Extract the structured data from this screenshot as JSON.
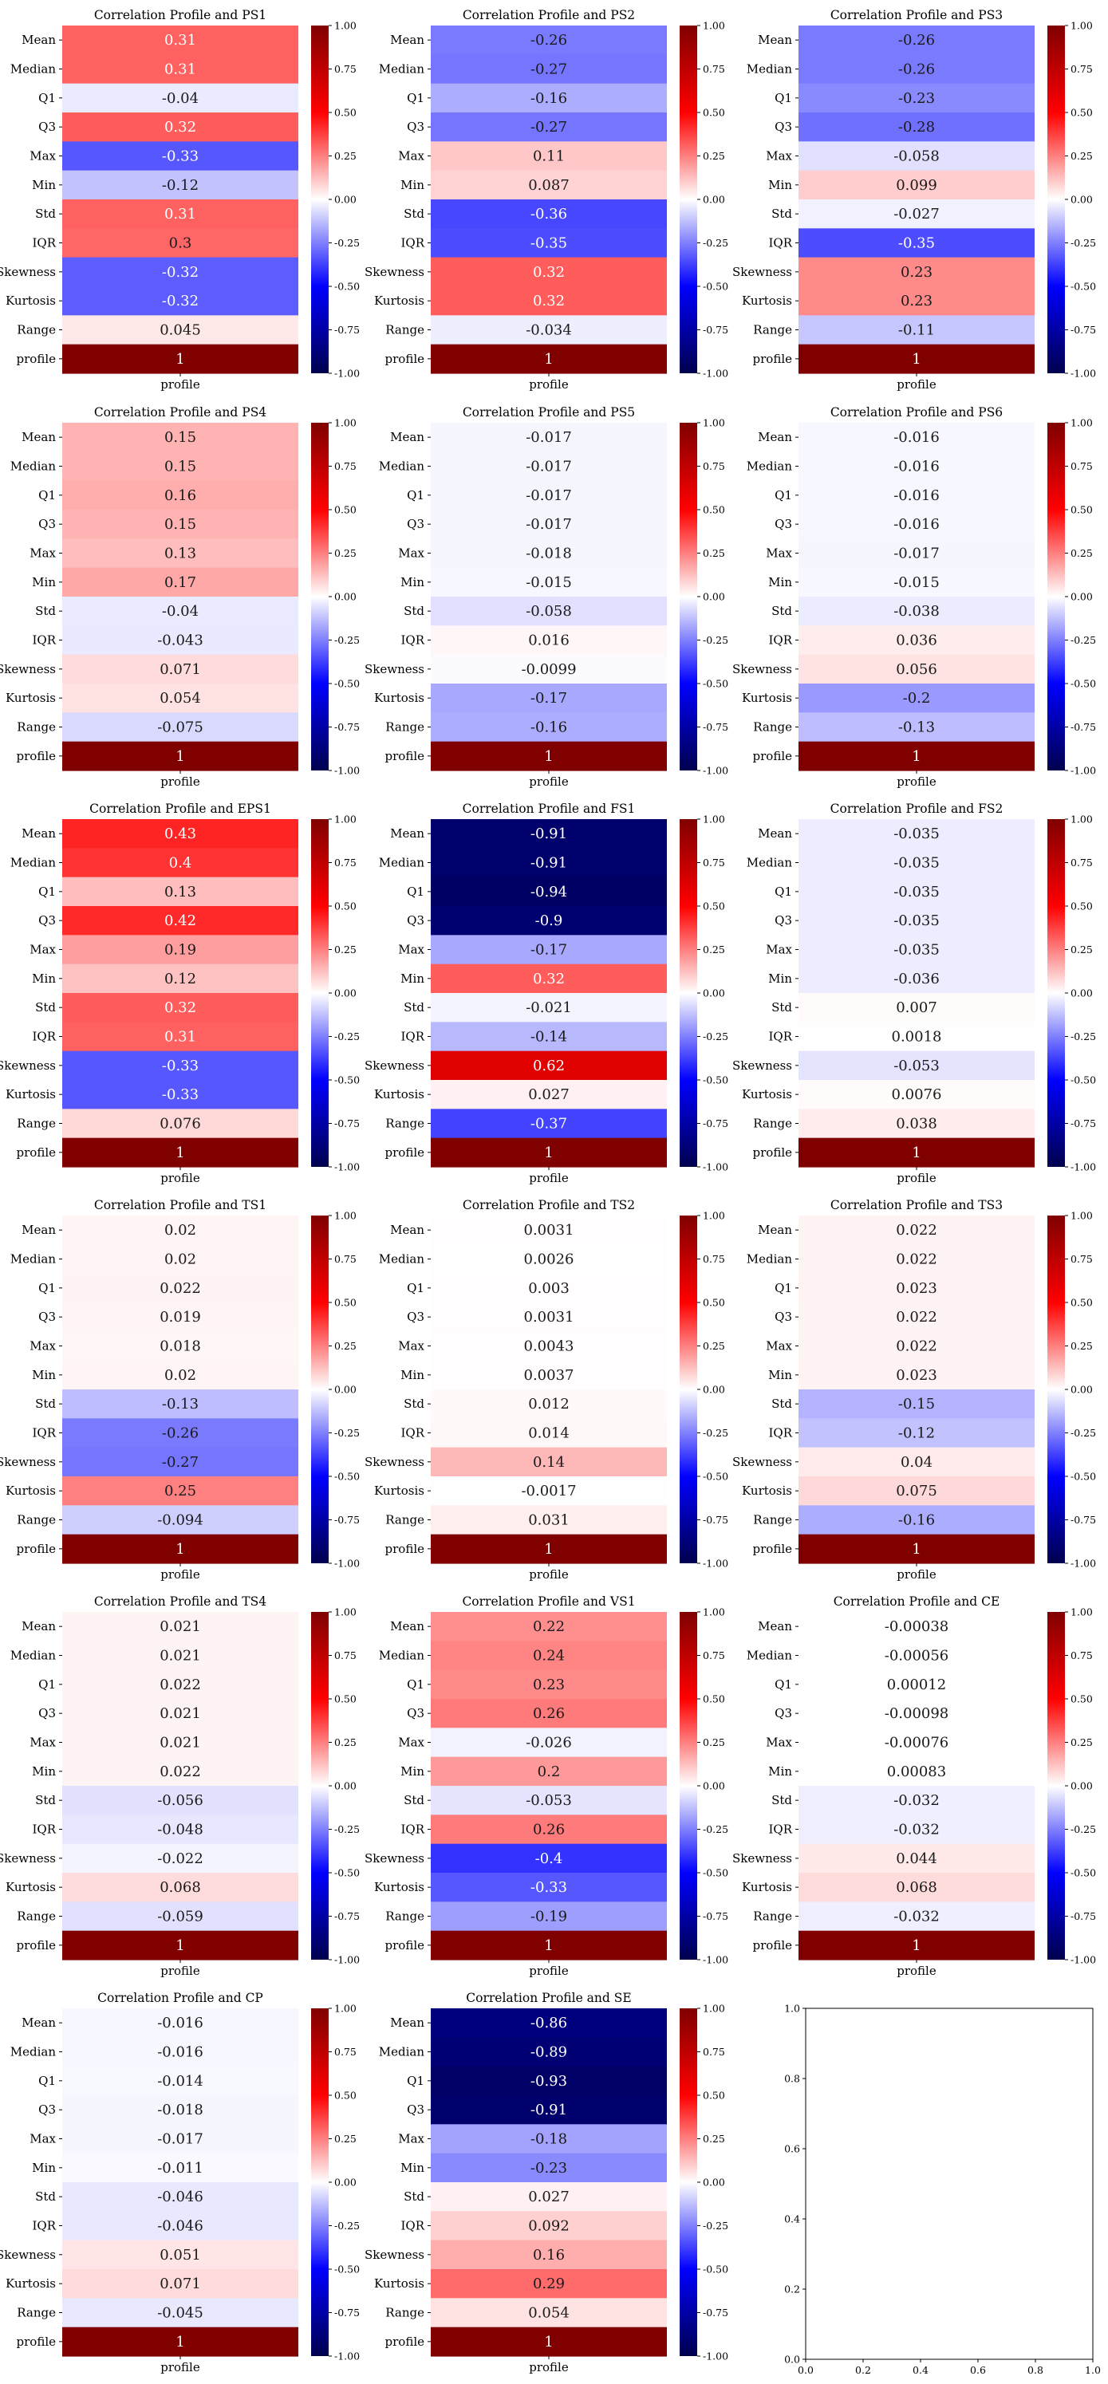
{
  "chart_data": [
    {
      "type": "heatmap",
      "title": "Correlation Profile and PS1",
      "xlabel": "profile",
      "rows": [
        "Mean",
        "Median",
        "Q1",
        "Q3",
        "Max",
        "Min",
        "Std",
        "IQR",
        "Skewness",
        "Kurtosis",
        "Range",
        "profile"
      ],
      "values": [
        "0.31",
        "0.31",
        "-0.04",
        "0.32",
        "-0.33",
        "-0.12",
        "0.31",
        "0.3",
        "-0.32",
        "-0.32",
        "0.045",
        "1"
      ],
      "colorbar": {
        "min": -1.0,
        "max": 1.0,
        "ticks": [
          "1.00",
          "0.75",
          "0.50",
          "0.25",
          "0.00",
          "-0.25",
          "-0.50",
          "-0.75",
          "-1.00"
        ]
      }
    },
    {
      "type": "heatmap",
      "title": "Correlation Profile and PS2",
      "xlabel": "profile",
      "rows": [
        "Mean",
        "Median",
        "Q1",
        "Q3",
        "Max",
        "Min",
        "Std",
        "IQR",
        "Skewness",
        "Kurtosis",
        "Range",
        "profile"
      ],
      "values": [
        "-0.26",
        "-0.27",
        "-0.16",
        "-0.27",
        "0.11",
        "0.087",
        "-0.36",
        "-0.35",
        "0.32",
        "0.32",
        "-0.034",
        "1"
      ],
      "colorbar": {
        "min": -1.0,
        "max": 1.0,
        "ticks": [
          "1.00",
          "0.75",
          "0.50",
          "0.25",
          "0.00",
          "-0.25",
          "-0.50",
          "-0.75",
          "-1.00"
        ]
      }
    },
    {
      "type": "heatmap",
      "title": "Correlation Profile and PS3",
      "xlabel": "profile",
      "rows": [
        "Mean",
        "Median",
        "Q1",
        "Q3",
        "Max",
        "Min",
        "Std",
        "IQR",
        "Skewness",
        "Kurtosis",
        "Range",
        "profile"
      ],
      "values": [
        "-0.26",
        "-0.26",
        "-0.23",
        "-0.28",
        "-0.058",
        "0.099",
        "-0.027",
        "-0.35",
        "0.23",
        "0.23",
        "-0.11",
        "1"
      ],
      "colorbar": {
        "min": -1.0,
        "max": 1.0,
        "ticks": [
          "1.00",
          "0.75",
          "0.50",
          "0.25",
          "0.00",
          "-0.25",
          "-0.50",
          "-0.75",
          "-1.00"
        ]
      }
    },
    {
      "type": "heatmap",
      "title": "Correlation Profile and PS4",
      "xlabel": "profile",
      "rows": [
        "Mean",
        "Median",
        "Q1",
        "Q3",
        "Max",
        "Min",
        "Std",
        "IQR",
        "Skewness",
        "Kurtosis",
        "Range",
        "profile"
      ],
      "values": [
        "0.15",
        "0.15",
        "0.16",
        "0.15",
        "0.13",
        "0.17",
        "-0.04",
        "-0.043",
        "0.071",
        "0.054",
        "-0.075",
        "1"
      ],
      "colorbar": {
        "min": -1.0,
        "max": 1.0,
        "ticks": [
          "1.00",
          "0.75",
          "0.50",
          "0.25",
          "0.00",
          "-0.25",
          "-0.50",
          "-0.75",
          "-1.00"
        ]
      }
    },
    {
      "type": "heatmap",
      "title": "Correlation Profile and PS5",
      "xlabel": "profile",
      "rows": [
        "Mean",
        "Median",
        "Q1",
        "Q3",
        "Max",
        "Min",
        "Std",
        "IQR",
        "Skewness",
        "Kurtosis",
        "Range",
        "profile"
      ],
      "values": [
        "-0.017",
        "-0.017",
        "-0.017",
        "-0.017",
        "-0.018",
        "-0.015",
        "-0.058",
        "0.016",
        "-0.0099",
        "-0.17",
        "-0.16",
        "1"
      ],
      "colorbar": {
        "min": -1.0,
        "max": 1.0,
        "ticks": [
          "1.00",
          "0.75",
          "0.50",
          "0.25",
          "0.00",
          "-0.25",
          "-0.50",
          "-0.75",
          "-1.00"
        ]
      }
    },
    {
      "type": "heatmap",
      "title": "Correlation Profile and PS6",
      "xlabel": "profile",
      "rows": [
        "Mean",
        "Median",
        "Q1",
        "Q3",
        "Max",
        "Min",
        "Std",
        "IQR",
        "Skewness",
        "Kurtosis",
        "Range",
        "profile"
      ],
      "values": [
        "-0.016",
        "-0.016",
        "-0.016",
        "-0.016",
        "-0.017",
        "-0.015",
        "-0.038",
        "0.036",
        "0.056",
        "-0.2",
        "-0.13",
        "1"
      ],
      "colorbar": {
        "min": -1.0,
        "max": 1.0,
        "ticks": [
          "1.00",
          "0.75",
          "0.50",
          "0.25",
          "0.00",
          "-0.25",
          "-0.50",
          "-0.75",
          "-1.00"
        ]
      }
    },
    {
      "type": "heatmap",
      "title": "Correlation Profile and EPS1",
      "xlabel": "profile",
      "rows": [
        "Mean",
        "Median",
        "Q1",
        "Q3",
        "Max",
        "Min",
        "Std",
        "IQR",
        "Skewness",
        "Kurtosis",
        "Range",
        "profile"
      ],
      "values": [
        "0.43",
        "0.4",
        "0.13",
        "0.42",
        "0.19",
        "0.12",
        "0.32",
        "0.31",
        "-0.33",
        "-0.33",
        "0.076",
        "1"
      ],
      "colorbar": {
        "min": -1.0,
        "max": 1.0,
        "ticks": [
          "1.00",
          "0.75",
          "0.50",
          "0.25",
          "0.00",
          "-0.25",
          "-0.50",
          "-0.75",
          "-1.00"
        ]
      }
    },
    {
      "type": "heatmap",
      "title": "Correlation Profile and FS1",
      "xlabel": "profile",
      "rows": [
        "Mean",
        "Median",
        "Q1",
        "Q3",
        "Max",
        "Min",
        "Std",
        "IQR",
        "Skewness",
        "Kurtosis",
        "Range",
        "profile"
      ],
      "values": [
        "-0.91",
        "-0.91",
        "-0.94",
        "-0.9",
        "-0.17",
        "0.32",
        "-0.021",
        "-0.14",
        "0.62",
        "0.027",
        "-0.37",
        "1"
      ],
      "colorbar": {
        "min": -1.0,
        "max": 1.0,
        "ticks": [
          "1.00",
          "0.75",
          "0.50",
          "0.25",
          "0.00",
          "-0.25",
          "-0.50",
          "-0.75",
          "-1.00"
        ]
      }
    },
    {
      "type": "heatmap",
      "title": "Correlation Profile and FS2",
      "xlabel": "profile",
      "rows": [
        "Mean",
        "Median",
        "Q1",
        "Q3",
        "Max",
        "Min",
        "Std",
        "IQR",
        "Skewness",
        "Kurtosis",
        "Range",
        "profile"
      ],
      "values": [
        "-0.035",
        "-0.035",
        "-0.035",
        "-0.035",
        "-0.035",
        "-0.036",
        "0.007",
        "0.0018",
        "-0.053",
        "0.0076",
        "0.038",
        "1"
      ],
      "colorbar": {
        "min": -1.0,
        "max": 1.0,
        "ticks": [
          "1.00",
          "0.75",
          "0.50",
          "0.25",
          "0.00",
          "-0.25",
          "-0.50",
          "-0.75",
          "-1.00"
        ]
      }
    },
    {
      "type": "heatmap",
      "title": "Correlation Profile and TS1",
      "xlabel": "profile",
      "rows": [
        "Mean",
        "Median",
        "Q1",
        "Q3",
        "Max",
        "Min",
        "Std",
        "IQR",
        "Skewness",
        "Kurtosis",
        "Range",
        "profile"
      ],
      "values": [
        "0.02",
        "0.02",
        "0.022",
        "0.019",
        "0.018",
        "0.02",
        "-0.13",
        "-0.26",
        "-0.27",
        "0.25",
        "-0.094",
        "1"
      ],
      "colorbar": {
        "min": -1.0,
        "max": 1.0,
        "ticks": [
          "1.00",
          "0.75",
          "0.50",
          "0.25",
          "0.00",
          "-0.25",
          "-0.50",
          "-0.75",
          "-1.00"
        ]
      }
    },
    {
      "type": "heatmap",
      "title": "Correlation Profile and TS2",
      "xlabel": "profile",
      "rows": [
        "Mean",
        "Median",
        "Q1",
        "Q3",
        "Max",
        "Min",
        "Std",
        "IQR",
        "Skewness",
        "Kurtosis",
        "Range",
        "profile"
      ],
      "values": [
        "0.0031",
        "0.0026",
        "0.003",
        "0.0031",
        "0.0043",
        "0.0037",
        "0.012",
        "0.014",
        "0.14",
        "-0.0017",
        "0.031",
        "1"
      ],
      "colorbar": {
        "min": -1.0,
        "max": 1.0,
        "ticks": [
          "1.00",
          "0.75",
          "0.50",
          "0.25",
          "0.00",
          "-0.25",
          "-0.50",
          "-0.75",
          "-1.00"
        ]
      }
    },
    {
      "type": "heatmap",
      "title": "Correlation Profile and TS3",
      "xlabel": "profile",
      "rows": [
        "Mean",
        "Median",
        "Q1",
        "Q3",
        "Max",
        "Min",
        "Std",
        "IQR",
        "Skewness",
        "Kurtosis",
        "Range",
        "profile"
      ],
      "values": [
        "0.022",
        "0.022",
        "0.023",
        "0.022",
        "0.022",
        "0.023",
        "-0.15",
        "-0.12",
        "0.04",
        "0.075",
        "-0.16",
        "1"
      ],
      "colorbar": {
        "min": -1.0,
        "max": 1.0,
        "ticks": [
          "1.00",
          "0.75",
          "0.50",
          "0.25",
          "0.00",
          "-0.25",
          "-0.50",
          "-0.75",
          "-1.00"
        ]
      }
    },
    {
      "type": "heatmap",
      "title": "Correlation Profile and TS4",
      "xlabel": "profile",
      "rows": [
        "Mean",
        "Median",
        "Q1",
        "Q3",
        "Max",
        "Min",
        "Std",
        "IQR",
        "Skewness",
        "Kurtosis",
        "Range",
        "profile"
      ],
      "values": [
        "0.021",
        "0.021",
        "0.022",
        "0.021",
        "0.021",
        "0.022",
        "-0.056",
        "-0.048",
        "-0.022",
        "0.068",
        "-0.059",
        "1"
      ],
      "colorbar": {
        "min": -1.0,
        "max": 1.0,
        "ticks": [
          "1.00",
          "0.75",
          "0.50",
          "0.25",
          "0.00",
          "-0.25",
          "-0.50",
          "-0.75",
          "-1.00"
        ]
      }
    },
    {
      "type": "heatmap",
      "title": "Correlation Profile and VS1",
      "xlabel": "profile",
      "rows": [
        "Mean",
        "Median",
        "Q1",
        "Q3",
        "Max",
        "Min",
        "Std",
        "IQR",
        "Skewness",
        "Kurtosis",
        "Range",
        "profile"
      ],
      "values": [
        "0.22",
        "0.24",
        "0.23",
        "0.26",
        "-0.026",
        "0.2",
        "-0.053",
        "0.26",
        "-0.4",
        "-0.33",
        "-0.19",
        "1"
      ],
      "colorbar": {
        "min": -1.0,
        "max": 1.0,
        "ticks": [
          "1.00",
          "0.75",
          "0.50",
          "0.25",
          "0.00",
          "-0.25",
          "-0.50",
          "-0.75",
          "-1.00"
        ]
      }
    },
    {
      "type": "heatmap",
      "title": "Correlation Profile and CE",
      "xlabel": "profile",
      "rows": [
        "Mean",
        "Median",
        "Q1",
        "Q3",
        "Max",
        "Min",
        "Std",
        "IQR",
        "Skewness",
        "Kurtosis",
        "Range",
        "profile"
      ],
      "values": [
        "-0.00038",
        "-0.00056",
        "0.00012",
        "-0.00098",
        "-0.00076",
        "0.00083",
        "-0.032",
        "-0.032",
        "0.044",
        "0.068",
        "-0.032",
        "1"
      ],
      "colorbar": {
        "min": -1.0,
        "max": 1.0,
        "ticks": [
          "1.00",
          "0.75",
          "0.50",
          "0.25",
          "0.00",
          "-0.25",
          "-0.50",
          "-0.75",
          "-1.00"
        ]
      }
    },
    {
      "type": "heatmap",
      "title": "Correlation Profile and CP",
      "xlabel": "profile",
      "rows": [
        "Mean",
        "Median",
        "Q1",
        "Q3",
        "Max",
        "Min",
        "Std",
        "IQR",
        "Skewness",
        "Kurtosis",
        "Range",
        "profile"
      ],
      "values": [
        "-0.016",
        "-0.016",
        "-0.014",
        "-0.018",
        "-0.017",
        "-0.011",
        "-0.046",
        "-0.046",
        "0.051",
        "0.071",
        "-0.045",
        "1"
      ],
      "colorbar": {
        "min": -1.0,
        "max": 1.0,
        "ticks": [
          "1.00",
          "0.75",
          "0.50",
          "0.25",
          "0.00",
          "-0.25",
          "-0.50",
          "-0.75",
          "-1.00"
        ]
      }
    },
    {
      "type": "heatmap",
      "title": "Correlation Profile and SE",
      "xlabel": "profile",
      "rows": [
        "Mean",
        "Median",
        "Q1",
        "Q3",
        "Max",
        "Min",
        "Std",
        "IQR",
        "Skewness",
        "Kurtosis",
        "Range",
        "profile"
      ],
      "values": [
        "-0.86",
        "-0.89",
        "-0.93",
        "-0.91",
        "-0.18",
        "-0.23",
        "0.027",
        "0.092",
        "0.16",
        "0.29",
        "0.054",
        "1"
      ],
      "colorbar": {
        "min": -1.0,
        "max": 1.0,
        "ticks": [
          "1.00",
          "0.75",
          "0.50",
          "0.25",
          "0.00",
          "-0.25",
          "-0.50",
          "-0.75",
          "-1.00"
        ]
      }
    },
    {
      "type": "scatter",
      "title": "",
      "xlim": [
        0.0,
        1.0
      ],
      "ylim": [
        0.0,
        1.0
      ],
      "xticks": [
        "0.0",
        "0.2",
        "0.4",
        "0.6",
        "0.8",
        "1.0"
      ],
      "yticks": [
        "0.0",
        "0.2",
        "0.4",
        "0.6",
        "0.8",
        "1.0"
      ],
      "series": []
    }
  ],
  "colormap": {
    "name": "seismic",
    "low": "#00004d",
    "mid": "#ffffff",
    "high": "#800000"
  }
}
